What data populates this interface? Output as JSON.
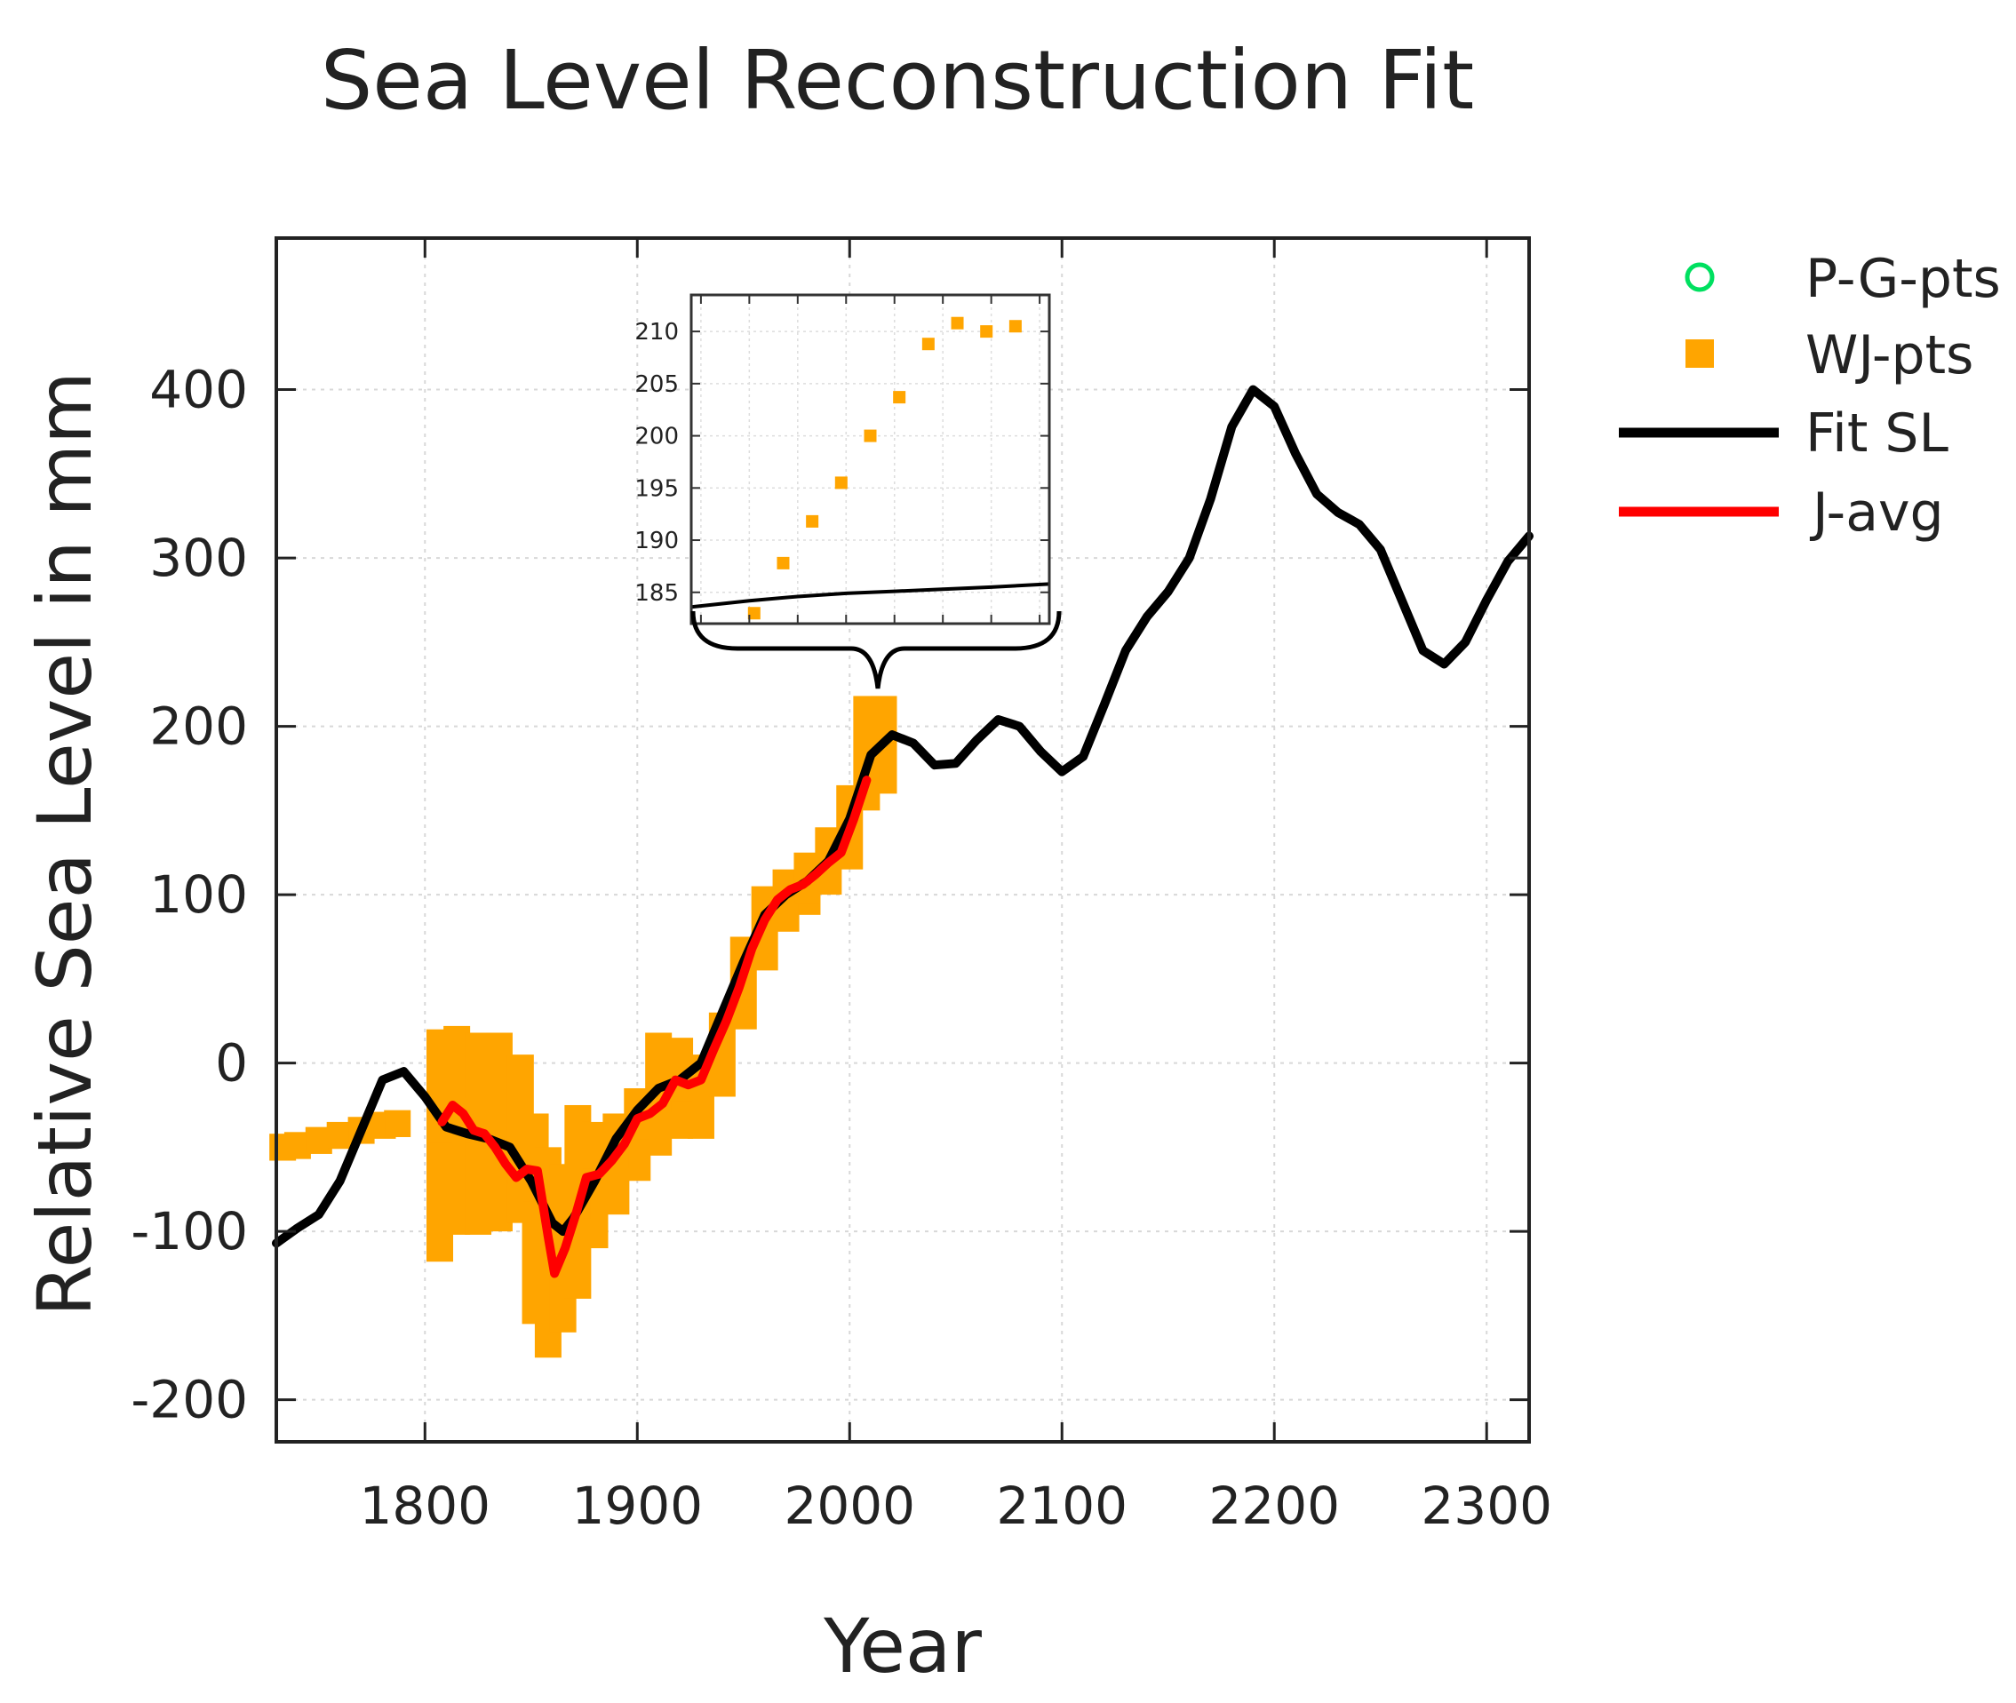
{
  "chart_data": {
    "type": "line",
    "title": "Sea Level Reconstruction Fit",
    "xlabel": "Year",
    "ylabel": "Relative Sea Level in mm",
    "xlim": [
      1730,
      2320
    ],
    "ylim": [
      -225,
      490
    ],
    "x_ticks": [
      1800,
      1900,
      2000,
      2100,
      2200,
      2300
    ],
    "y_ticks": [
      -200,
      -100,
      0,
      100,
      200,
      300,
      400
    ],
    "grid": true,
    "legend_position": "right, outside plot",
    "legend": [
      {
        "label": "P-G-pts",
        "marker": "circle-open",
        "color": "#00e060"
      },
      {
        "label": "WJ-pts",
        "marker": "square",
        "color": "#ffa500"
      },
      {
        "label": "Fit SL",
        "marker": "line",
        "color": "#000000"
      },
      {
        "label": "J-avg",
        "marker": "line",
        "color": "#ff0000"
      }
    ],
    "series": [
      {
        "name": "WJ-pts",
        "kind": "error-band",
        "color": "#ffa500",
        "points": [
          {
            "x": 1733,
            "y": -50,
            "lo": -58,
            "hi": -42
          },
          {
            "x": 1740,
            "y": -49,
            "lo": -57,
            "hi": -41
          },
          {
            "x": 1750,
            "y": -46,
            "lo": -54,
            "hi": -38
          },
          {
            "x": 1760,
            "y": -43,
            "lo": -51,
            "hi": -35
          },
          {
            "x": 1770,
            "y": -40,
            "lo": -48,
            "hi": -32
          },
          {
            "x": 1780,
            "y": -37,
            "lo": -45,
            "hi": -29
          },
          {
            "x": 1787,
            "y": -36,
            "lo": -44,
            "hi": -28
          },
          {
            "x": 1807,
            "y": -40,
            "lo": -118,
            "hi": 20
          },
          {
            "x": 1815,
            "y": -28,
            "lo": -102,
            "hi": 22
          },
          {
            "x": 1825,
            "y": -40,
            "lo": -102,
            "hi": 18
          },
          {
            "x": 1835,
            "y": -55,
            "lo": -100,
            "hi": 18
          },
          {
            "x": 1845,
            "y": -65,
            "lo": -95,
            "hi": 5
          },
          {
            "x": 1852,
            "y": -75,
            "lo": -155,
            "hi": -30
          },
          {
            "x": 1858,
            "y": -110,
            "lo": -175,
            "hi": -50
          },
          {
            "x": 1865,
            "y": -100,
            "lo": -160,
            "hi": -60
          },
          {
            "x": 1872,
            "y": -85,
            "lo": -140,
            "hi": -25
          },
          {
            "x": 1880,
            "y": -70,
            "lo": -110,
            "hi": -35
          },
          {
            "x": 1890,
            "y": -55,
            "lo": -90,
            "hi": -30
          },
          {
            "x": 1900,
            "y": -38,
            "lo": -70,
            "hi": -15
          },
          {
            "x": 1910,
            "y": -22,
            "lo": -55,
            "hi": 18
          },
          {
            "x": 1920,
            "y": -15,
            "lo": -45,
            "hi": 15
          },
          {
            "x": 1930,
            "y": -10,
            "lo": -45,
            "hi": 5
          },
          {
            "x": 1940,
            "y": 10,
            "lo": -20,
            "hi": 30
          },
          {
            "x": 1950,
            "y": 45,
            "lo": 20,
            "hi": 75
          },
          {
            "x": 1960,
            "y": 80,
            "lo": 55,
            "hi": 105
          },
          {
            "x": 1970,
            "y": 95,
            "lo": 78,
            "hi": 115
          },
          {
            "x": 1980,
            "y": 102,
            "lo": 88,
            "hi": 125
          },
          {
            "x": 1990,
            "y": 120,
            "lo": 100,
            "hi": 140
          },
          {
            "x": 2000,
            "y": 140,
            "lo": 115,
            "hi": 165
          },
          {
            "x": 2008,
            "y": 175,
            "lo": 150,
            "hi": 218
          },
          {
            "x": 2016,
            "y": 185,
            "lo": 160,
            "hi": 218
          }
        ]
      },
      {
        "name": "Fit SL",
        "color": "#000000",
        "x": [
          1730,
          1740,
          1750,
          1760,
          1770,
          1780,
          1790,
          1800,
          1810,
          1820,
          1830,
          1840,
          1850,
          1860,
          1865,
          1870,
          1880,
          1890,
          1900,
          1910,
          1920,
          1930,
          1940,
          1950,
          1960,
          1970,
          1980,
          1990,
          2000,
          2010,
          2020,
          2030,
          2040,
          2050,
          2060,
          2070,
          2080,
          2090,
          2100,
          2110,
          2120,
          2130,
          2140,
          2150,
          2160,
          2170,
          2180,
          2190,
          2200,
          2210,
          2220,
          2230,
          2240,
          2250,
          2260,
          2270,
          2280,
          2290,
          2300,
          2310,
          2320
        ],
        "y": [
          -107,
          -98,
          -90,
          -70,
          -40,
          -10,
          -5,
          -20,
          -38,
          -42,
          -45,
          -50,
          -70,
          -95,
          -100,
          -92,
          -70,
          -45,
          -28,
          -15,
          -10,
          0,
          30,
          60,
          88,
          100,
          108,
          120,
          145,
          183,
          195,
          190,
          177,
          178,
          192,
          204,
          200,
          185,
          173,
          182,
          213,
          245,
          265,
          280,
          300,
          335,
          378,
          400,
          390,
          362,
          338,
          327,
          320,
          305,
          275,
          245,
          237,
          250,
          275,
          298,
          313
        ]
      },
      {
        "name": "J-avg",
        "color": "#ff0000",
        "x": [
          1808,
          1813,
          1818,
          1823,
          1828,
          1833,
          1838,
          1843,
          1848,
          1853,
          1858,
          1861,
          1866,
          1871,
          1876,
          1882,
          1888,
          1894,
          1900,
          1906,
          1912,
          1918,
          1924,
          1930,
          1936,
          1942,
          1948,
          1954,
          1960,
          1966,
          1972,
          1978,
          1984,
          1990,
          1996,
          2002,
          2008
        ],
        "y": [
          -35,
          -25,
          -30,
          -40,
          -42,
          -50,
          -60,
          -68,
          -63,
          -64,
          -103,
          -125,
          -110,
          -90,
          -68,
          -66,
          -58,
          -48,
          -33,
          -30,
          -24,
          -10,
          -13,
          -10,
          8,
          25,
          45,
          68,
          85,
          97,
          103,
          106,
          112,
          119,
          125,
          145,
          168
        ]
      }
    ],
    "inset": {
      "description": "zoom of 2000-2070 region",
      "xlim": [
        1998,
        2072
      ],
      "ylim": [
        182,
        213.5
      ],
      "x_ticks": [
        2000,
        2010,
        2020,
        2030,
        2040,
        2050,
        2060,
        2070
      ],
      "y_ticks": [
        185,
        190,
        195,
        200,
        205,
        210
      ],
      "y_tick_labels": [
        "185",
        "190",
        "195",
        "200",
        "205",
        "210"
      ],
      "wj_points": [
        {
          "x": 2011,
          "y": 183
        },
        {
          "x": 2017,
          "y": 187.8
        },
        {
          "x": 2023,
          "y": 191.8
        },
        {
          "x": 2029,
          "y": 195.5
        },
        {
          "x": 2035,
          "y": 200
        },
        {
          "x": 2041,
          "y": 203.7
        },
        {
          "x": 2047,
          "y": 208.8
        },
        {
          "x": 2053,
          "y": 210.8
        },
        {
          "x": 2059,
          "y": 210
        },
        {
          "x": 2065,
          "y": 210.5
        }
      ],
      "fit_line": {
        "x": [
          1998,
          2010,
          2020,
          2030,
          2040,
          2050,
          2060,
          2072
        ],
        "y": [
          183.6,
          184.2,
          184.6,
          184.9,
          185.1,
          185.3,
          185.5,
          185.8
        ]
      }
    }
  }
}
